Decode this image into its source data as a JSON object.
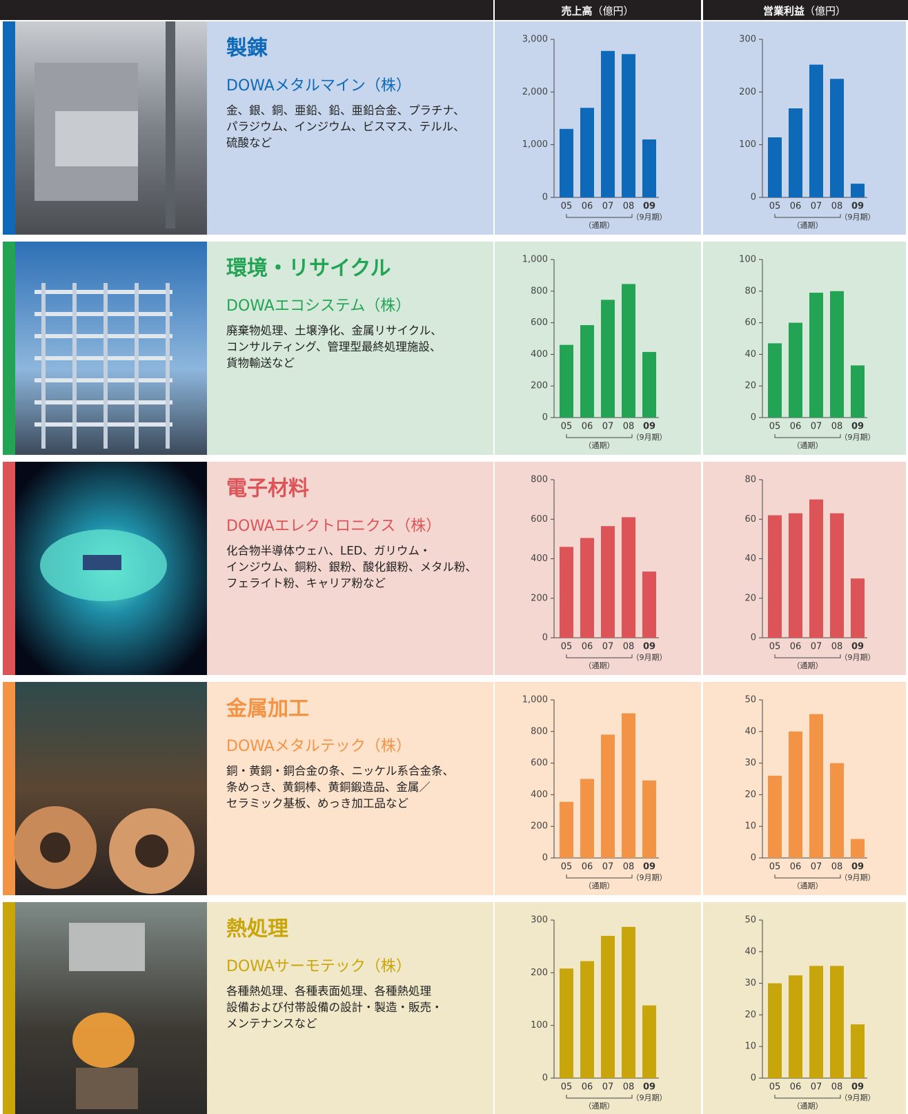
{
  "header": {
    "sales": "売上高",
    "sales_unit": "（億円）",
    "profit": "営業利益",
    "profit_unit": "（億円）"
  },
  "segments": [
    {
      "title": "製錬",
      "company": "DOWAメタルマイン（株）",
      "color": "#0e6ab8",
      "background": "#c7d6ed",
      "description": [
        "金、銀、銅、亜鉛、鉛、亜鉛合金、プラチナ、",
        "パラジウム、インジウム、ビスマス、テルル、",
        "硫酸など"
      ]
    },
    {
      "title": "環境・リサイクル",
      "company": "DOWAエコシステム（株）",
      "color": "#23a455",
      "background": "#d6e9da",
      "description": [
        "廃棄物処理、土壌浄化、金属リサイクル、",
        "コンサルティング、管理型最終処理施設、",
        "貨物輸送など"
      ]
    },
    {
      "title": "電子材料",
      "company": "DOWAエレクトロニクス（株）",
      "color": "#dc5358",
      "background": "#f5d7d1",
      "description": [
        "化合物半導体ウェハ、LED、ガリウム・",
        "インジウム、銅粉、銀粉、酸化銀粉、メタル粉、",
        "フェライト粉、キャリア粉など"
      ]
    },
    {
      "title": "金属加工",
      "company": "DOWAメタルテック（株）",
      "color": "#f39345",
      "background": "#fde3cc",
      "description": [
        "銅・黄銅・銅合金の条、ニッケル系合金条、",
        "条めっき、黄銅棒、黄銅鍛造品、金属／",
        "セラミック基板、めっき加工品など"
      ]
    },
    {
      "title": "熱処理",
      "company": "DOWAサーモテック（株）",
      "color": "#c9a50c",
      "background": "#f1e8c9",
      "description": [
        "各種熱処理、各種表面処理、各種熱処理",
        "設備および付帯設備の設計・製造・販売・",
        "メンテナンスなど"
      ]
    }
  ],
  "chart_data": [
    {
      "type": "bar",
      "categories": [
        "05",
        "06",
        "07",
        "08",
        "09"
      ],
      "values": [
        1300,
        1700,
        2780,
        2720,
        1100
      ],
      "color": "#0e6ab8",
      "ylim": [
        0,
        3000
      ],
      "yticks": [
        0,
        {
          "value": 1000,
          "label": "1,000"
        },
        {
          "value": 2000,
          "label": "2,000"
        },
        {
          "value": 3000,
          "label": "3,000"
        }
      ],
      "period_note": "（通期）",
      "partial_note": "（9月期）"
    },
    {
      "type": "bar",
      "categories": [
        "05",
        "06",
        "07",
        "08",
        "09"
      ],
      "values": [
        114,
        169,
        252,
        225,
        26
      ],
      "color": "#0e6ab8",
      "ylim": [
        0,
        300
      ],
      "yticks": [
        0,
        100,
        200,
        300
      ],
      "period_note": "（通期）",
      "partial_note": "（9月期）"
    },
    {
      "type": "bar",
      "categories": [
        "05",
        "06",
        "07",
        "08",
        "09"
      ],
      "values": [
        460,
        585,
        745,
        845,
        415
      ],
      "color": "#23a455",
      "ylim": [
        0,
        1000
      ],
      "yticks": [
        0,
        200,
        400,
        600,
        800,
        {
          "value": 1000,
          "label": "1,000"
        }
      ],
      "period_note": "（通期）",
      "partial_note": "（9月期）"
    },
    {
      "type": "bar",
      "categories": [
        "05",
        "06",
        "07",
        "08",
        "09"
      ],
      "values": [
        47,
        60,
        79,
        80,
        33
      ],
      "color": "#23a455",
      "ylim": [
        0,
        100
      ],
      "yticks": [
        0,
        20,
        40,
        60,
        80,
        100
      ],
      "period_note": "（通期）",
      "partial_note": "（9月期）"
    },
    {
      "type": "bar",
      "categories": [
        "05",
        "06",
        "07",
        "08",
        "09"
      ],
      "values": [
        460,
        505,
        565,
        610,
        335
      ],
      "color": "#dc5358",
      "ylim": [
        0,
        800
      ],
      "yticks": [
        0,
        200,
        400,
        600,
        800
      ],
      "period_note": "（通期）",
      "partial_note": "（9月期）"
    },
    {
      "type": "bar",
      "categories": [
        "05",
        "06",
        "07",
        "08",
        "09"
      ],
      "values": [
        62,
        63,
        70,
        63,
        30
      ],
      "color": "#dc5358",
      "ylim": [
        0,
        80
      ],
      "yticks": [
        0,
        20,
        40,
        60,
        80
      ],
      "period_note": "（通期）",
      "partial_note": "（9月期）"
    },
    {
      "type": "bar",
      "categories": [
        "05",
        "06",
        "07",
        "08",
        "09"
      ],
      "values": [
        355,
        500,
        780,
        915,
        490
      ],
      "color": "#f39345",
      "ylim": [
        0,
        1000
      ],
      "yticks": [
        0,
        200,
        400,
        600,
        800,
        {
          "value": 1000,
          "label": "1,000"
        }
      ],
      "period_note": "（通期）",
      "partial_note": "（9月期）"
    },
    {
      "type": "bar",
      "categories": [
        "05",
        "06",
        "07",
        "08",
        "09"
      ],
      "values": [
        26,
        40,
        45.5,
        30,
        6
      ],
      "color": "#f39345",
      "ylim": [
        0,
        50
      ],
      "yticks": [
        0,
        10,
        20,
        30,
        40,
        50
      ],
      "period_note": "（通期）",
      "partial_note": "（9月期）"
    },
    {
      "type": "bar",
      "categories": [
        "05",
        "06",
        "07",
        "08",
        "09"
      ],
      "values": [
        208,
        222,
        270,
        287,
        138
      ],
      "color": "#c9a50c",
      "ylim": [
        0,
        300
      ],
      "yticks": [
        0,
        100,
        200,
        300
      ],
      "period_note": "（通期）",
      "partial_note": "（9月期）"
    },
    {
      "type": "bar",
      "categories": [
        "05",
        "06",
        "07",
        "08",
        "09"
      ],
      "values": [
        30,
        32.5,
        35.5,
        35.5,
        17
      ],
      "color": "#c9a50c",
      "ylim": [
        0,
        50
      ],
      "yticks": [
        0,
        10,
        20,
        30,
        40,
        50
      ],
      "period_note": "（通期）",
      "partial_note": "（9月期）"
    }
  ]
}
